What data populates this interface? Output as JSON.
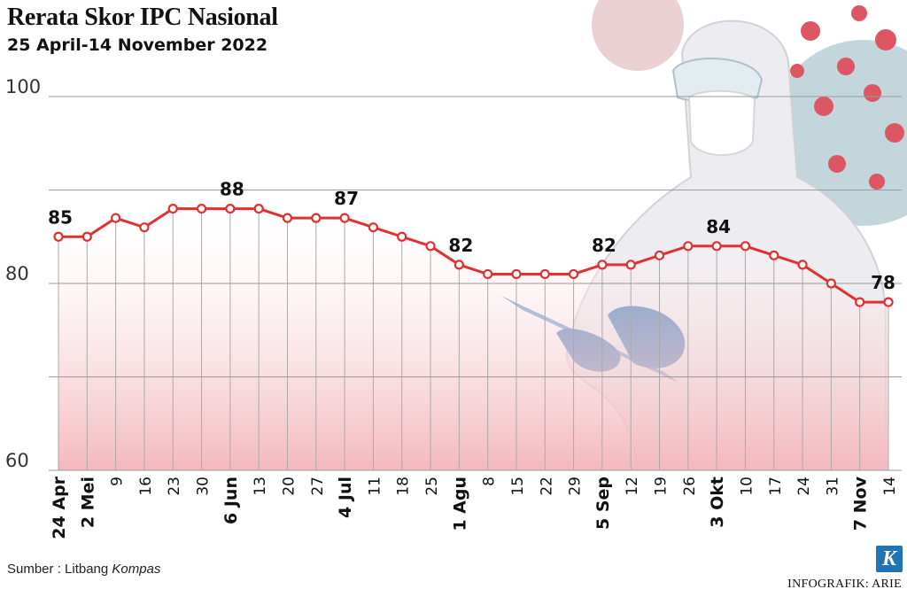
{
  "title": "Rerata Skor IPC Nasional",
  "subtitle": "25 April-14 November 2022",
  "source_prefix": "Sumber : Litbang ",
  "source_emph": "Kompas",
  "credit": "INFOGRAFIK: ARIE",
  "logo_letter": "K",
  "colors": {
    "line": "#e03030",
    "fill_top": "#ffffff",
    "fill_bottom": "#f3b8bd",
    "grid": "#9a9a9a"
  },
  "chart_data": {
    "type": "line",
    "title": "Rerata Skor IPC Nasional",
    "subtitle": "25 April-14 November 2022",
    "xlabel": "",
    "ylabel": "",
    "ylim": [
      60,
      100
    ],
    "yticks": [
      60,
      80,
      100
    ],
    "grid": true,
    "x": [
      "24 Apr",
      "2 Mei",
      "9",
      "16",
      "23",
      "30",
      "6 Jun",
      "13",
      "20",
      "27",
      "4 Jul",
      "11",
      "18",
      "25",
      "1 Agu",
      "8",
      "15",
      "22",
      "29",
      "5 Sep",
      "12",
      "19",
      "26",
      "3 Okt",
      "10",
      "17",
      "24",
      "31",
      "7 Nov",
      "14"
    ],
    "major_ticks": [
      "24 Apr",
      "2 Mei",
      "6 Jun",
      "4 Jul",
      "1 Agu",
      "5 Sep",
      "3 Okt",
      "7 Nov"
    ],
    "series": [
      {
        "values": [
          85,
          85,
          87,
          86,
          88,
          88,
          88,
          88,
          87,
          87,
          87,
          86,
          85,
          84,
          82,
          81,
          81,
          81,
          81,
          82,
          82,
          83,
          84,
          84,
          84,
          83,
          82,
          80,
          78,
          78
        ]
      }
    ],
    "annotations": [
      {
        "index": 0,
        "text": "85"
      },
      {
        "index": 6,
        "text": "88"
      },
      {
        "index": 10,
        "text": "87"
      },
      {
        "index": 14,
        "text": "82"
      },
      {
        "index": 19,
        "text": "82"
      },
      {
        "index": 23,
        "text": "84"
      },
      {
        "index": 29,
        "text": "78"
      }
    ]
  }
}
